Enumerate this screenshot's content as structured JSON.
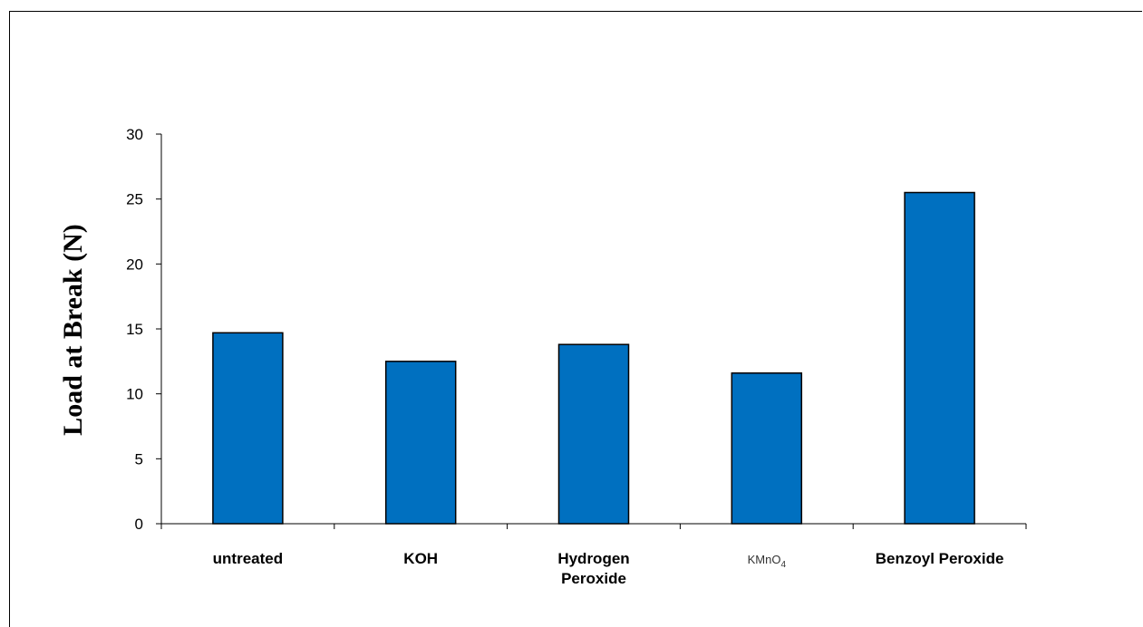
{
  "chart_data": {
    "type": "bar",
    "title": "",
    "xlabel": "",
    "ylabel": "Load at Break (N)",
    "ylim": [
      0,
      30
    ],
    "yticks": [
      0,
      5,
      10,
      15,
      20,
      25,
      30
    ],
    "categories": [
      "untreated",
      "KOH",
      "Hydrogen Peroxide",
      "KMnO4",
      "Benzoyl Peroxide"
    ],
    "category_display": [
      [
        "untreated"
      ],
      [
        "KOH"
      ],
      [
        "Hydrogen",
        "Peroxide"
      ],
      [
        "KMnO",
        "4"
      ],
      [
        "Benzoyl Peroxide"
      ]
    ],
    "values": [
      14.7,
      12.5,
      13.8,
      11.6,
      25.5
    ],
    "bar_color": "#0070C0",
    "grid": false,
    "legend": "none"
  }
}
